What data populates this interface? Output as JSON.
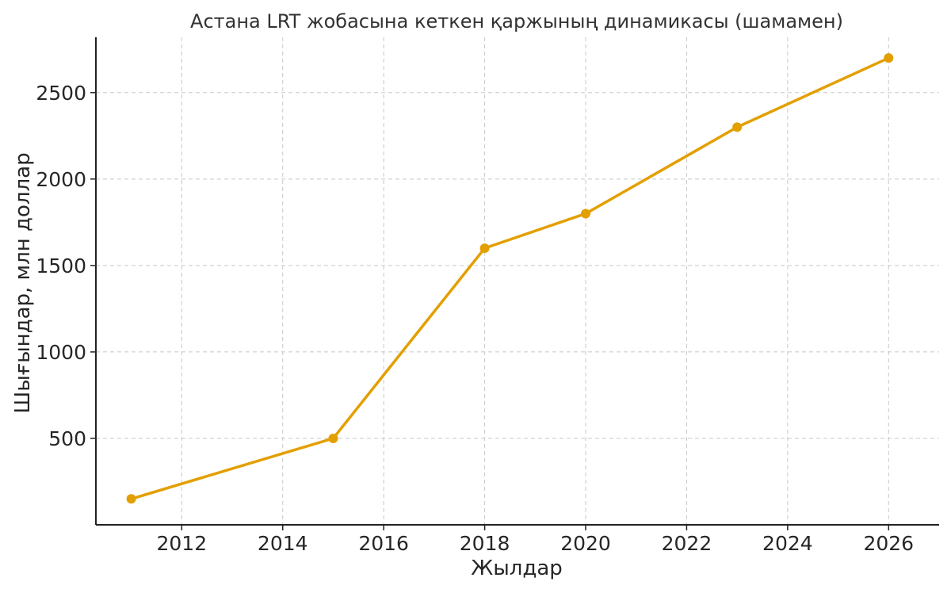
{
  "chart_data": {
    "type": "line",
    "title": "Астана LRT жобасына кеткен қаржының динамикасы (шамамен)",
    "xlabel": "Жылдар",
    "ylabel": "Шығындар, млн доллар",
    "xlim": [
      2010.3,
      2027.0
    ],
    "ylim": [
      0,
      2820
    ],
    "x_ticks": [
      2012,
      2014,
      2016,
      2018,
      2020,
      2022,
      2024,
      2026
    ],
    "y_ticks": [
      500,
      1000,
      1500,
      2000,
      2500
    ],
    "grid": true,
    "series": [
      {
        "color": "#e39f00",
        "points": [
          {
            "x": 2011,
            "y": 150
          },
          {
            "x": 2015,
            "y": 500
          },
          {
            "x": 2018,
            "y": 1600
          },
          {
            "x": 2020,
            "y": 1800
          },
          {
            "x": 2023,
            "y": 2300
          },
          {
            "x": 2026,
            "y": 2700
          }
        ]
      }
    ]
  }
}
